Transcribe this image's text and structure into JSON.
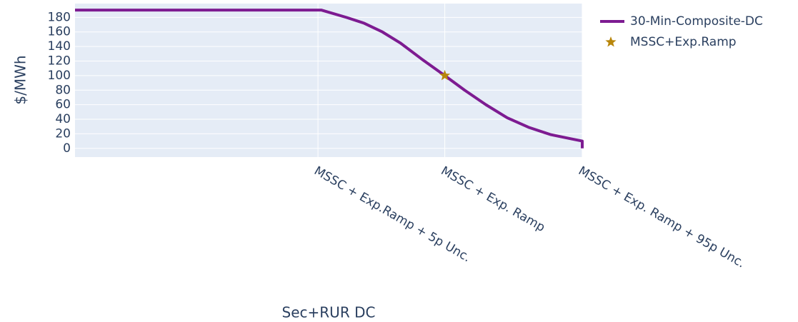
{
  "chart_data": {
    "type": "line",
    "x_title": "Sec+RUR DC",
    "y_title": "$/MWh",
    "xlim": [
      0,
      100
    ],
    "xticks": [
      {
        "value": 47.9,
        "label": "MSSC + Exp.Ramp + 5p Unc."
      },
      {
        "value": 72.9,
        "label": "MSSC + Exp. Ramp"
      },
      {
        "value": 100,
        "label": "MSSC + Exp. Ramp + 95p Unc."
      }
    ],
    "ylim": [
      -12,
      199
    ],
    "yticks": [
      0,
      20,
      40,
      60,
      80,
      100,
      120,
      140,
      160,
      180
    ],
    "grid": true,
    "series": [
      {
        "name": "30-Min-Composite-DC",
        "color": "#7d1b91",
        "mode": "line",
        "x": [
          0,
          48.6,
          53.5,
          57,
          60.6,
          64.1,
          68.3,
          72.9,
          76.8,
          81,
          85.2,
          89.4,
          93.7,
          97.9,
          100,
          100
        ],
        "values": [
          190,
          190,
          180,
          172,
          160,
          145,
          123,
          100,
          80,
          60,
          42,
          29,
          19,
          13,
          10,
          0
        ]
      },
      {
        "name": "MSSC+Exp.Ramp",
        "color": "#b8860b",
        "mode": "star",
        "x": [
          72.9
        ],
        "values": [
          100
        ]
      }
    ]
  }
}
